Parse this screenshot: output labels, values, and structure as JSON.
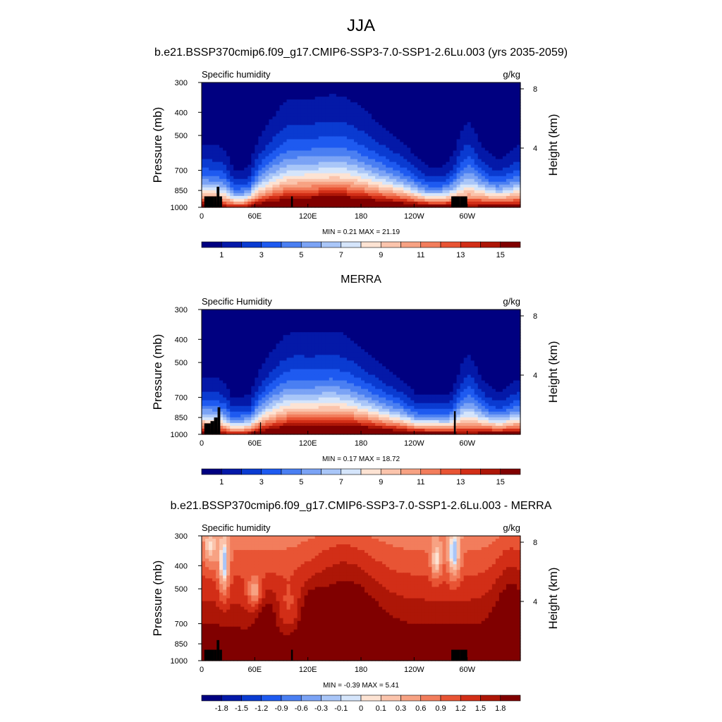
{
  "figure": {
    "title": "JJA",
    "model_subtitle": "b.e21.BSSP370cmip6.f09_g17.CMIP6-SSP3-7.0-SSP1-2.6Lu.003 (yrs 2035-2059)",
    "obs_subtitle": "MERRA",
    "diff_subtitle": "b.e21.BSSP370cmip6.f09_g17.CMIP6-SSP3-7.0-SSP1-2.6Lu.003 - MERRA"
  },
  "chart_data": [
    {
      "type": "heatmap",
      "id": "model",
      "left_label": "Specific humidity",
      "units": "g/kg",
      "xlabel": "",
      "ylabel": "Pressure (mb)",
      "y2label": "Height (km)",
      "x_ticks": [
        "0",
        "60E",
        "120E",
        "180",
        "120W",
        "60W"
      ],
      "x_tick_lons": [
        0,
        60,
        120,
        180,
        240,
        300
      ],
      "xlim": [
        0,
        360
      ],
      "y_ticks": [
        "300",
        "400",
        "500",
        "700",
        "850",
        "1000"
      ],
      "y_tick_values": [
        300,
        400,
        500,
        700,
        850,
        1000
      ],
      "ylim": [
        300,
        1000
      ],
      "y2_ticks": [
        "8",
        "4"
      ],
      "y2_tick_values": [
        8,
        4
      ],
      "stats": "MIN =   0.21  MAX =  21.19",
      "levels": [
        1,
        2,
        3,
        4,
        5,
        6,
        7,
        8,
        9,
        10,
        11,
        12,
        13,
        14,
        15
      ],
      "colorbar_labels": [
        "1",
        "3",
        "5",
        "7",
        "9",
        "11",
        "13",
        "15"
      ],
      "palette": [
        "#000080",
        "#0419a8",
        "#0a3bd1",
        "#1e5af0",
        "#4a7ff2",
        "#7ba3f5",
        "#a9c6f8",
        "#d5e5fb",
        "#fde3d3",
        "#fbc4ac",
        "#f7a283",
        "#f27d5c",
        "#e85434",
        "#d22e17",
        "#ad1607",
        "#800000"
      ],
      "field": "q"
    },
    {
      "type": "heatmap",
      "id": "obs",
      "left_label": "Specific Humidity",
      "units": "g/kg",
      "xlabel": "",
      "ylabel": "Pressure (mb)",
      "y2label": "Height (km)",
      "x_ticks": [
        "0",
        "60E",
        "120E",
        "180",
        "120W",
        "60W"
      ],
      "x_tick_lons": [
        0,
        60,
        120,
        180,
        240,
        300
      ],
      "xlim": [
        0,
        360
      ],
      "y_ticks": [
        "300",
        "400",
        "500",
        "700",
        "850",
        "1000"
      ],
      "y_tick_values": [
        300,
        400,
        500,
        700,
        850,
        1000
      ],
      "ylim": [
        300,
        1000
      ],
      "y2_ticks": [
        "8",
        "4"
      ],
      "y2_tick_values": [
        8,
        4
      ],
      "stats": "MIN =   0.17  MAX =  18.72",
      "levels": [
        1,
        2,
        3,
        4,
        5,
        6,
        7,
        8,
        9,
        10,
        11,
        12,
        13,
        14,
        15
      ],
      "colorbar_labels": [
        "1",
        "3",
        "5",
        "7",
        "9",
        "11",
        "13",
        "15"
      ],
      "palette": [
        "#000080",
        "#0419a8",
        "#0a3bd1",
        "#1e5af0",
        "#4a7ff2",
        "#7ba3f5",
        "#a9c6f8",
        "#d5e5fb",
        "#fde3d3",
        "#fbc4ac",
        "#f7a283",
        "#f27d5c",
        "#e85434",
        "#d22e17",
        "#ad1607",
        "#800000"
      ],
      "field": "q_obs"
    },
    {
      "type": "heatmap",
      "id": "diff",
      "left_label": "Specific humidity",
      "units": "g/kg",
      "xlabel": "",
      "ylabel": "Pressure (mb)",
      "y2label": "Height (km)",
      "x_ticks": [
        "0",
        "60E",
        "120E",
        "180",
        "120W",
        "60W"
      ],
      "x_tick_lons": [
        0,
        60,
        120,
        180,
        240,
        300
      ],
      "xlim": [
        0,
        360
      ],
      "y_ticks": [
        "300",
        "400",
        "500",
        "700",
        "850",
        "1000"
      ],
      "y_tick_values": [
        300,
        400,
        500,
        700,
        850,
        1000
      ],
      "ylim": [
        300,
        1000
      ],
      "y2_ticks": [
        "8",
        "4"
      ],
      "y2_tick_values": [
        8,
        4
      ],
      "stats": "MIN =  -0.39  MAX =   5.41",
      "levels": [
        -1.8,
        -1.5,
        -1.2,
        -0.9,
        -0.6,
        -0.3,
        -0.1,
        0,
        0.1,
        0.3,
        0.6,
        0.9,
        1.2,
        1.5,
        1.8
      ],
      "colorbar_labels": [
        "-1.8",
        "-1.5",
        "-1.2",
        "-0.9",
        "-0.6",
        "-0.3",
        "-0.1",
        "0",
        "0.1",
        "0.3",
        "0.6",
        "0.9",
        "1.2",
        "1.5",
        "1.8"
      ],
      "palette": [
        "#000080",
        "#0419a8",
        "#0a3bd1",
        "#1e5af0",
        "#4a7ff2",
        "#7ba3f5",
        "#a9c6f8",
        "#d5e5fb",
        "#fde3d3",
        "#fbc4ac",
        "#f7a283",
        "#f27d5c",
        "#e85434",
        "#d22e17",
        "#ad1607",
        "#800000"
      ],
      "field": "dq"
    }
  ]
}
